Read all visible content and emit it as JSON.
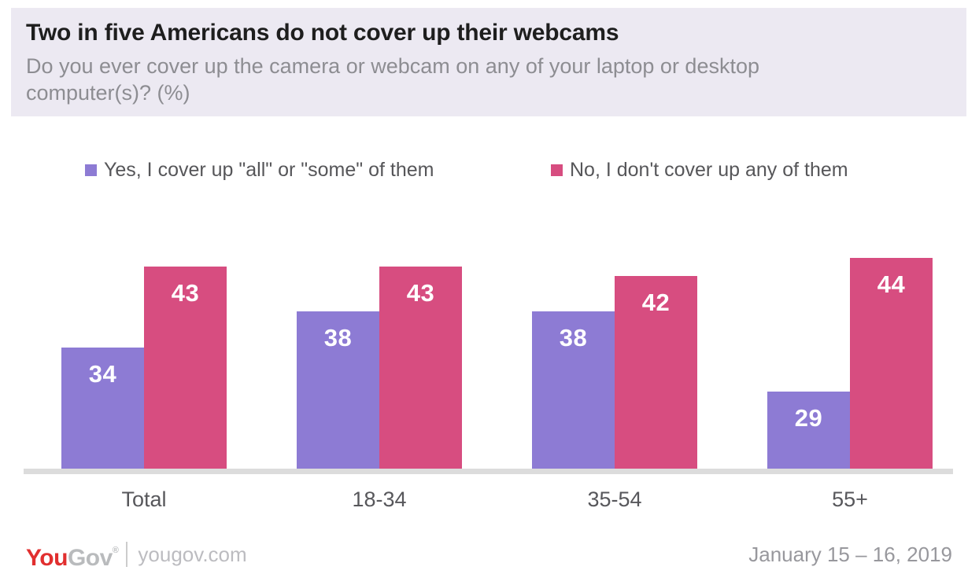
{
  "header": {
    "title": "Two in five Americans do not cover up their webcams",
    "subtitle": "Do you ever cover up the camera or webcam on any of your laptop or desktop computer(s)? (%)"
  },
  "legend": [
    {
      "label": "Yes, I cover up \"all\" or \"some\" of them",
      "color": "#8d7bd4"
    },
    {
      "label": "No, I don't cover up any of them",
      "color": "#d74d80"
    }
  ],
  "chart_data": {
    "type": "bar",
    "categories": [
      "Total",
      "18-34",
      "35-54",
      "55+"
    ],
    "series": [
      {
        "name": "Yes, I cover up \"all\" or \"some\" of them",
        "color": "#8d7bd4",
        "values": [
          34,
          38,
          38,
          29
        ]
      },
      {
        "name": "No, I don't cover up any of them",
        "color": "#d74d80",
        "values": [
          43,
          43,
          42,
          44
        ]
      }
    ],
    "title": "Two in five Americans do not cover up their webcams",
    "xlabel": "",
    "ylabel": "",
    "ylim": [
      20.4,
      46
    ],
    "grid": false,
    "legend_position": "top",
    "value_labels": "inside-top-white",
    "note": "y-axis is visually truncated; bars are not drawn from zero"
  },
  "colors": {
    "series_yes": "#8d7bd4",
    "series_no": "#d74d80",
    "header_background": "#ece9f2",
    "title_text": "#1e1e1e",
    "subtitle_text": "#8d8d92",
    "axis_line": "#dcdcdc",
    "logo_red": "#e12f2f",
    "logo_gray": "#b9bbbd"
  },
  "footer": {
    "logo_part1": "You",
    "logo_part2": "Gov",
    "logo_registered": "®",
    "site": "yougov.com",
    "date": "January 15 – 16, 2019"
  }
}
